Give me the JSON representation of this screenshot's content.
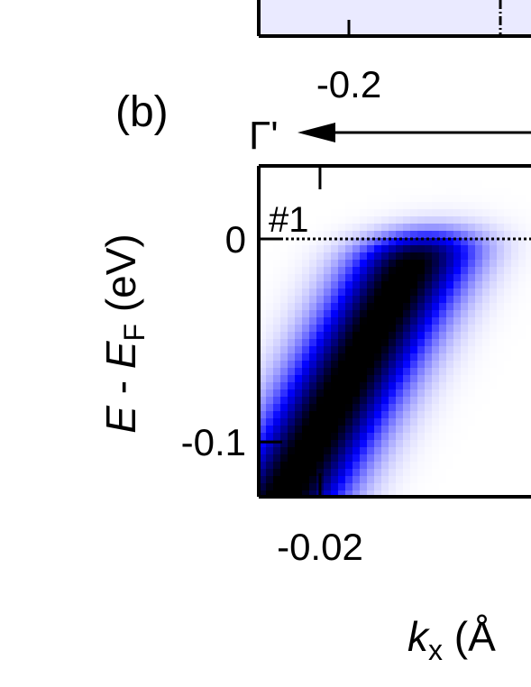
{
  "panel_label": "(b)",
  "direction_label": "Γ'",
  "top_panel_tick": "-0.2",
  "chart_data": {
    "type": "heatmap",
    "colormap": [
      "#ffffff",
      "#0000ff",
      "#000000"
    ],
    "tag": "#1",
    "xlabel_var": "k",
    "xlabel_sub": "x",
    "xlabel_unit": " (Å",
    "ylabel_var_e": "E",
    "ylabel_sep": " - ",
    "ylabel_var_ef": "E",
    "ylabel_sub": "F",
    "ylabel_unit": " (eV)",
    "x_ticks": [
      {
        "value": -0.02,
        "label": "-0.02"
      }
    ],
    "y_ticks": [
      {
        "value": 0,
        "label": "0"
      },
      {
        "value": -0.1,
        "label": "-0.1"
      }
    ],
    "xlim": [
      -0.029,
      0.011
    ],
    "ylim": [
      -0.127,
      0.036
    ],
    "fermi_level": 0,
    "band": {
      "slope_eV_per_invA": 6.1,
      "intercept_eV": 0.028,
      "width_eV": 0.036
    }
  }
}
